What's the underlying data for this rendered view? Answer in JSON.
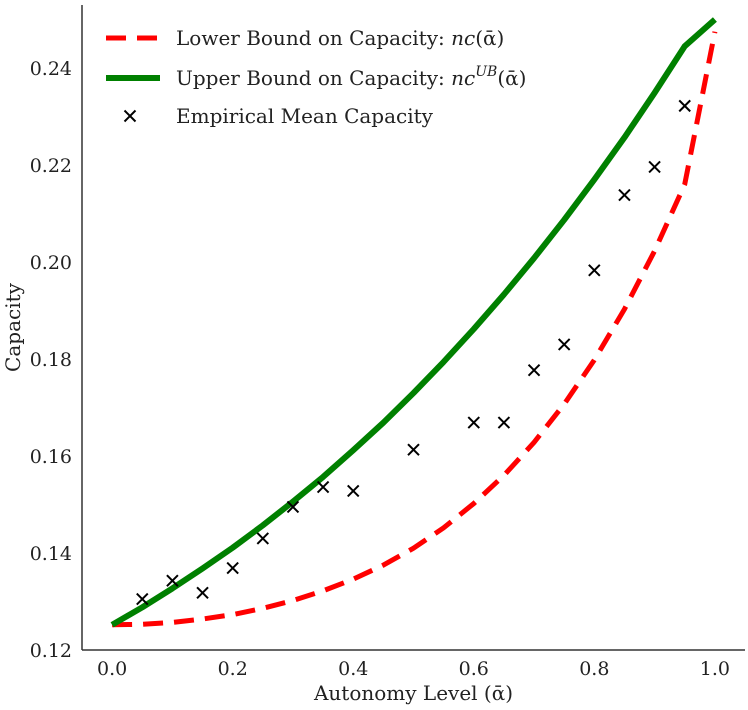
{
  "chart_data": {
    "type": "line",
    "title": "",
    "xlabel": "Autonomy Level (ᾱ)",
    "ylabel": "Capacity",
    "xlim": [
      -0.05,
      1.05
    ],
    "ylim": [
      0.12,
      0.253
    ],
    "xticks": [
      "0.0",
      "0.2",
      "0.4",
      "0.6",
      "0.8",
      "1.0"
    ],
    "xtick_values": [
      0.0,
      0.2,
      0.4,
      0.6,
      0.8,
      1.0
    ],
    "yticks": [
      "0.12",
      "0.14",
      "0.16",
      "0.18",
      "0.20",
      "0.22",
      "0.24"
    ],
    "ytick_values": [
      0.12,
      0.14,
      0.16,
      0.18,
      0.2,
      0.22,
      0.24
    ],
    "grid": false,
    "legend_position": "top-left",
    "series": [
      {
        "name": "Lower Bound on Capacity: nc(ᾱ)",
        "type": "line",
        "style": "dashed",
        "color": "#ff0000",
        "x": [
          0.0,
          0.05,
          0.1,
          0.15,
          0.2,
          0.25,
          0.3,
          0.35,
          0.4,
          0.45,
          0.5,
          0.55,
          0.6,
          0.65,
          0.7,
          0.75,
          0.8,
          0.85,
          0.9,
          0.95,
          1.0
        ],
        "values": [
          0.1252,
          0.1253,
          0.1257,
          0.1264,
          0.1273,
          0.1286,
          0.1302,
          0.1322,
          0.1346,
          0.1375,
          0.141,
          0.1452,
          0.1502,
          0.156,
          0.1628,
          0.1707,
          0.1798,
          0.1903,
          0.2023,
          0.216,
          0.2475
        ]
      },
      {
        "name": "Upper Bound on Capacity: nc^UB(ᾱ)",
        "type": "line",
        "style": "solid",
        "color": "#008000",
        "x": [
          0.0,
          0.05,
          0.1,
          0.15,
          0.2,
          0.25,
          0.3,
          0.35,
          0.4,
          0.45,
          0.5,
          0.55,
          0.6,
          0.65,
          0.7,
          0.75,
          0.8,
          0.85,
          0.9,
          0.95,
          1.0
        ],
        "values": [
          0.1252,
          0.1288,
          0.1327,
          0.1368,
          0.1411,
          0.1457,
          0.1506,
          0.1557,
          0.1612,
          0.1669,
          0.173,
          0.1794,
          0.1862,
          0.1933,
          0.2008,
          0.2087,
          0.217,
          0.2257,
          0.2349,
          0.2445,
          0.25
        ]
      },
      {
        "name": "Empirical Mean Capacity",
        "type": "scatter",
        "marker": "x",
        "color": "#000000",
        "x": [
          0.05,
          0.1,
          0.15,
          0.2,
          0.25,
          0.3,
          0.35,
          0.4,
          0.5,
          0.6,
          0.65,
          0.7,
          0.75,
          0.8,
          0.85,
          0.9,
          0.95
        ],
        "values": [
          0.1305,
          0.1343,
          0.1318,
          0.1369,
          0.143,
          0.1495,
          0.1536,
          0.1528,
          0.1613,
          0.1669,
          0.1669,
          0.1777,
          0.183,
          0.1983,
          0.2138,
          0.2196,
          0.2322
        ]
      }
    ],
    "legend": [
      {
        "prefix": "Lower Bound on Capacity: ",
        "math": "nc",
        "sup": "",
        "suffix": "(ᾱ)"
      },
      {
        "prefix": "Upper Bound on Capacity: ",
        "math": "nc",
        "sup": "UB",
        "suffix": "(ᾱ)"
      },
      {
        "prefix": "Empirical Mean Capacity",
        "math": "",
        "sup": "",
        "suffix": ""
      }
    ]
  }
}
